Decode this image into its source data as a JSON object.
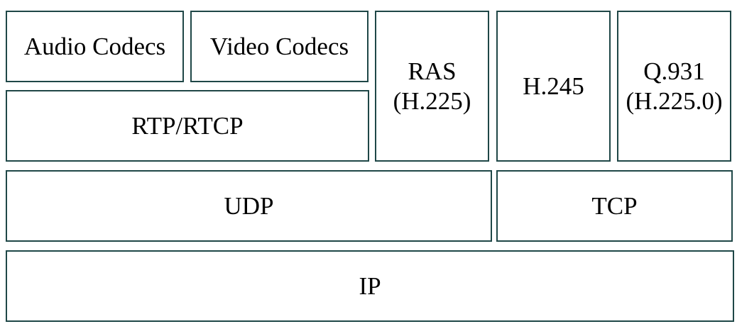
{
  "layers": {
    "application": {
      "audio_codecs": "Audio Codecs",
      "video_codecs": "Video Codecs",
      "rtp_rtcp": "RTP/RTCP",
      "ras": {
        "line1": "RAS",
        "line2": "(H.225)"
      },
      "h245": "H.245",
      "q931": {
        "line1": "Q.931",
        "line2": "(H.225.0)"
      }
    },
    "transport": {
      "udp": "UDP",
      "tcp": "TCP"
    },
    "network": {
      "ip": "IP"
    }
  },
  "colors": {
    "border": "#1f4747",
    "background": "#ffffff",
    "text": "#000000"
  }
}
